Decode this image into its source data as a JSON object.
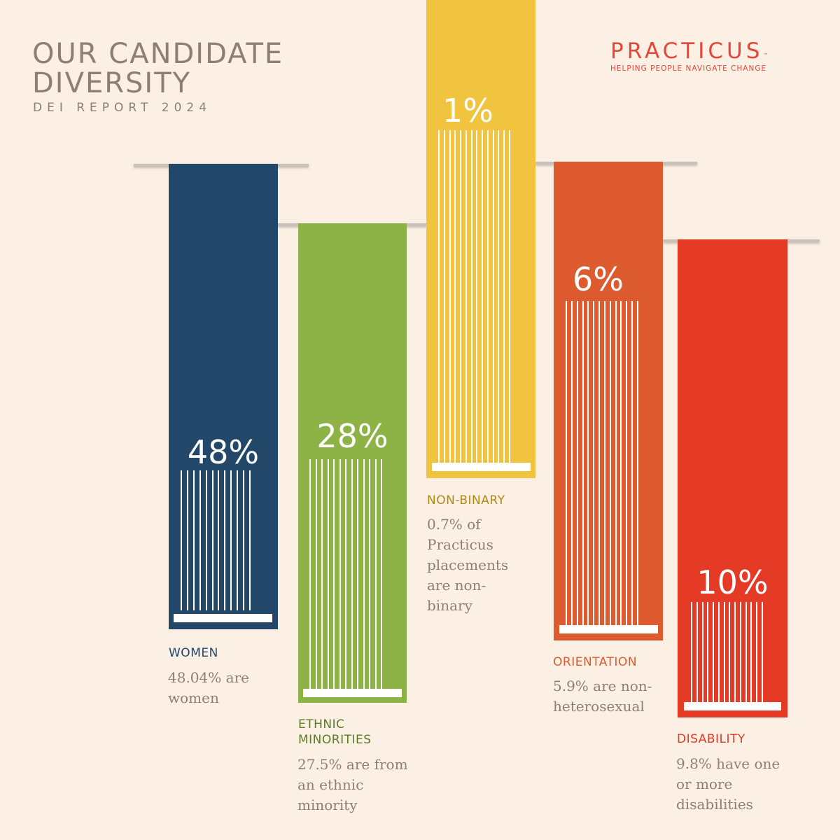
{
  "header": {
    "title_line1": "OUR CANDIDATE",
    "title_line2": "DIVERSITY",
    "subtitle": "DEI REPORT 2024"
  },
  "logo": {
    "name": "PRACTICUS",
    "tm": "™",
    "tagline": "HELPING PEOPLE NAVIGATE CHANGE",
    "color": "#e3463a"
  },
  "chart_data": {
    "type": "bar",
    "categories": [
      "WOMEN",
      "ETHNIC MINORITIES",
      "NON-BINARY",
      "ORIENTATION",
      "DISABILITY"
    ],
    "values": [
      48,
      28,
      1,
      6,
      10
    ],
    "items": [
      {
        "category": "WOMEN",
        "pct_label": "48%",
        "value": 48.04,
        "description": "48.04% are women",
        "color": "#224769",
        "label_color": "#224769"
      },
      {
        "category": "ETHNIC MINORITIES",
        "pct_label": "28%",
        "value": 27.5,
        "description": "27.5% are from an ethnic minority",
        "color": "#8db346",
        "label_color": "#5b7a2c"
      },
      {
        "category": "NON-BINARY",
        "pct_label": "1%",
        "value": 0.7,
        "description": "0.7% of Practicus placements are non-binary",
        "color": "#f0c43e",
        "label_color": "#b08a12"
      },
      {
        "category": "ORIENTATION",
        "pct_label": "6%",
        "value": 5.9,
        "description": "5.9% are non-heterosexual",
        "color": "#dd5b2f",
        "label_color": "#dd5b2f"
      },
      {
        "category": "DISABILITY",
        "pct_label": "10%",
        "value": 9.8,
        "description": "9.8% have one or more disabilities",
        "color": "#e43a26",
        "label_color": "#e43a26"
      }
    ]
  }
}
